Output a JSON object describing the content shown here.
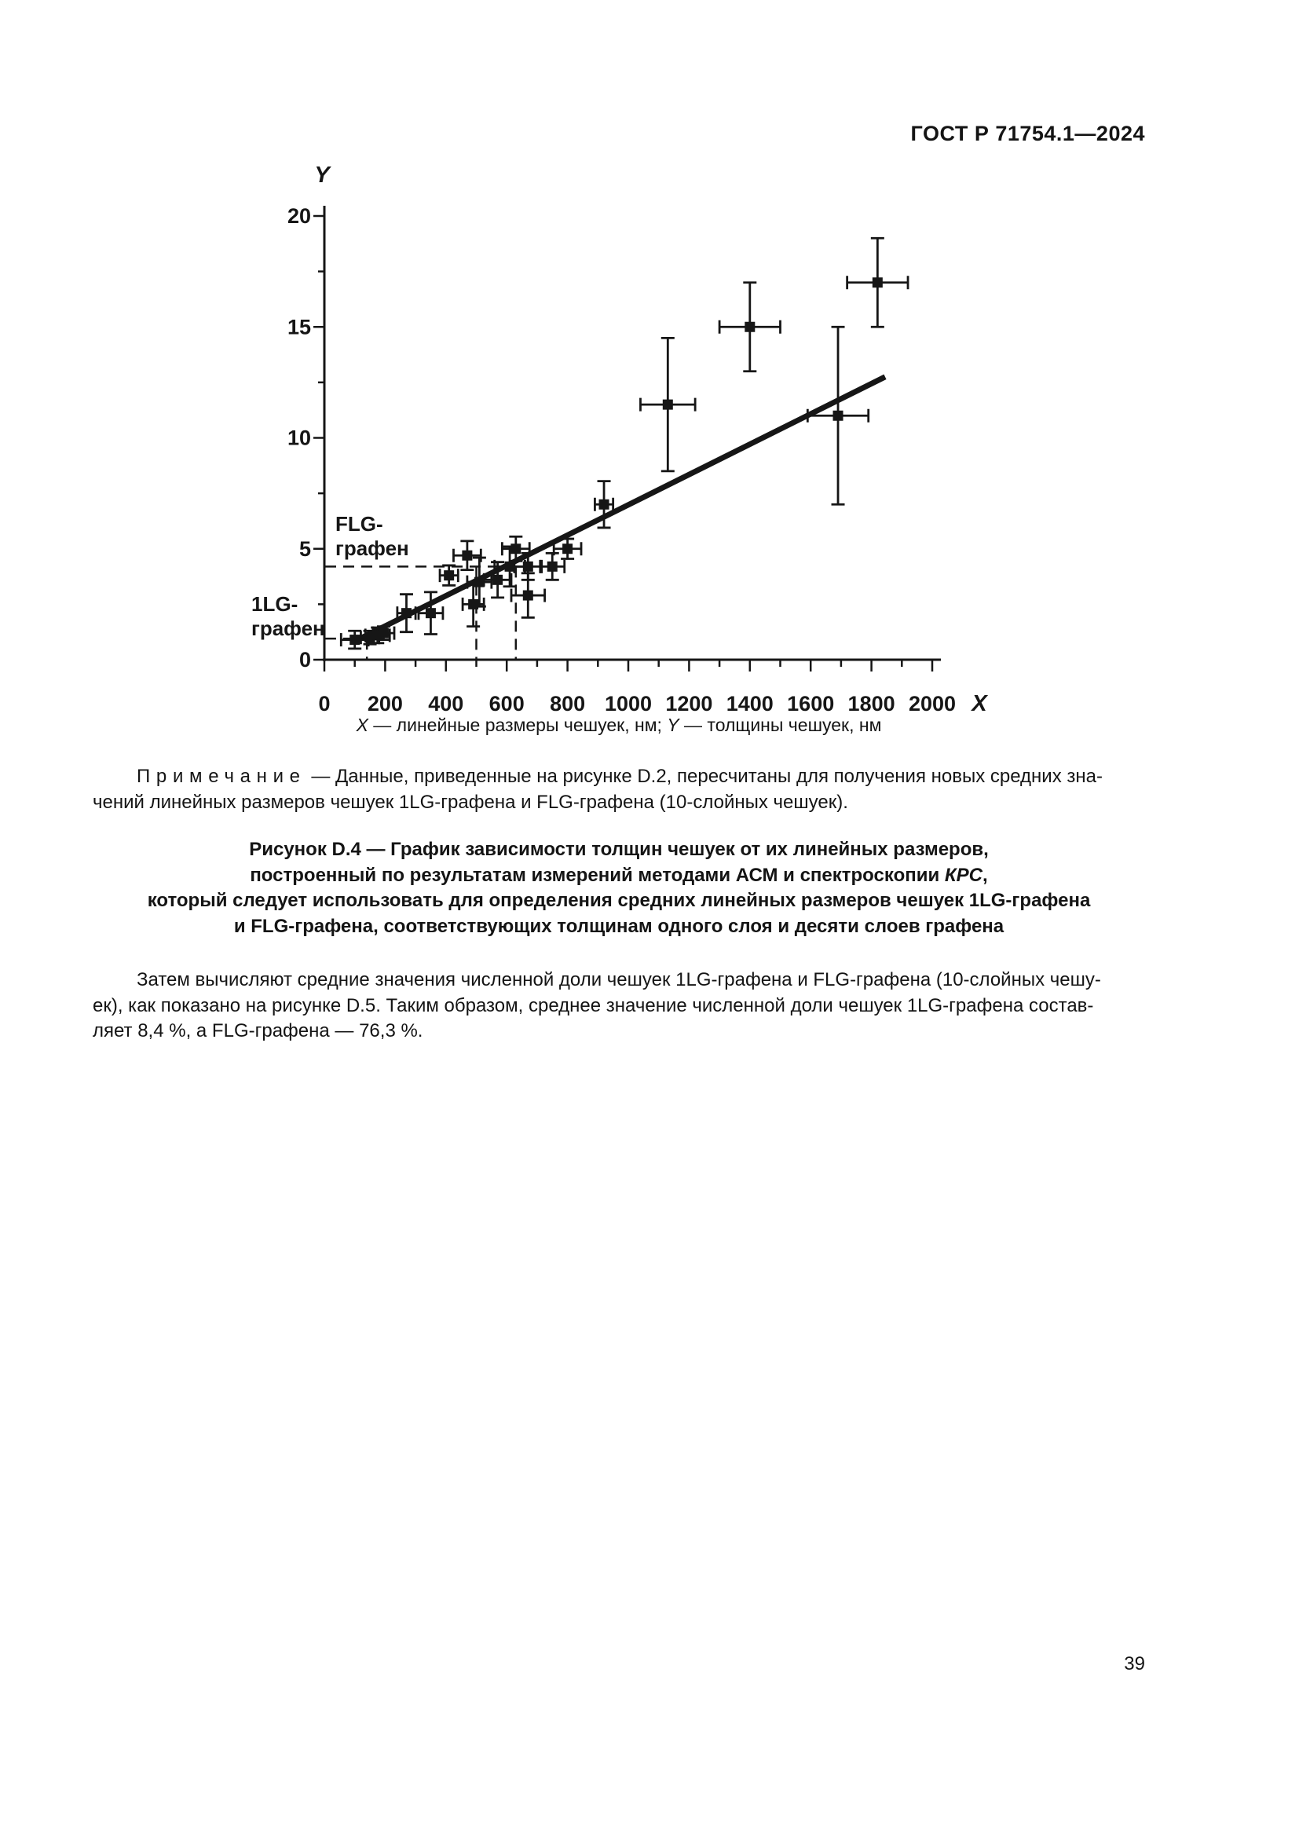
{
  "header": {
    "title": "ГОСТ Р 71754.1—2024"
  },
  "figure_note": {
    "label": "Примечание",
    "line1_rest": " — Данные, приведенные на рисунке D.2, пересчитаны для получения новых средних зна-",
    "line2": "чений линейных размеров чешуек 1LG-графена и FLG-графена (10-слойных чешуек)."
  },
  "figure_caption": {
    "line1": "Рисунок D.4 — График зависимости толщин чешуек от их линейных размеров,",
    "line2_a": "построенный по результатам измерений методами АСМ и спектроскопии ",
    "line2_italic": "КРС",
    "line2_b": ",",
    "line3": "который следует использовать для определения средних линейных размеров чешуек 1LG-графена",
    "line4": "и FLG-графена, соответствующих толщинам одного слоя и десяти слоев графена"
  },
  "body_paragraph": {
    "line1": "Затем вычисляют средние значения численной доли чешуек 1LG-графена и FLG-графена (10-слойных чешу-",
    "line2": "ек), как показано на рисунке D.5. Таким образом, среднее значение численной доли чешуек 1LG-графена состав-",
    "line3": "ляет 8,4 %, а FLG-графена — 76,3 %."
  },
  "axis_note": {
    "x_symbol": "X",
    "x_text": " — линейные размеры чешуек, нм; ",
    "y_symbol": "Y",
    "y_text": " — толщины чешуек, нм"
  },
  "footer": {
    "page_number": "39"
  },
  "chart_data": {
    "type": "scatter",
    "title": "",
    "xlabel": "X — линейные размеры чешуек, нм",
    "ylabel": "Y — толщины чешуек, нм",
    "x_axis_symbol": "X",
    "y_axis_symbol": "Y",
    "xlim": [
      0,
      2000
    ],
    "ylim": [
      0,
      20
    ],
    "x_ticks_major": [
      0,
      200,
      400,
      600,
      800,
      1000,
      1200,
      1400,
      1600,
      1800,
      2000
    ],
    "x_minor_step": 100,
    "y_ticks_major": [
      0,
      5,
      10,
      15,
      20
    ],
    "y_ticks_minor": [
      2.5,
      7.5,
      12.5,
      17.5
    ],
    "grid": false,
    "marker": "filled-square",
    "points": [
      {
        "x": 100,
        "y": 0.9,
        "xerr": 45,
        "yerr": 0.4
      },
      {
        "x": 150,
        "y": 1.0,
        "xerr": 30,
        "yerr": 0.3
      },
      {
        "x": 175,
        "y": 1.1,
        "xerr": 40,
        "yerr": 0.35
      },
      {
        "x": 195,
        "y": 1.2,
        "xerr": 35,
        "yerr": 0.3
      },
      {
        "x": 270,
        "y": 2.1,
        "xerr": 30,
        "yerr": 0.85
      },
      {
        "x": 350,
        "y": 2.1,
        "xerr": 40,
        "yerr": 0.95
      },
      {
        "x": 410,
        "y": 3.8,
        "xerr": 30,
        "yerr": 0.45
      },
      {
        "x": 470,
        "y": 4.7,
        "xerr": 45,
        "yerr": 0.65
      },
      {
        "x": 490,
        "y": 2.5,
        "xerr": 35,
        "yerr": 1.0
      },
      {
        "x": 510,
        "y": 3.5,
        "xerr": 40,
        "yerr": 1.1
      },
      {
        "x": 570,
        "y": 3.6,
        "xerr": 45,
        "yerr": 0.8
      },
      {
        "x": 610,
        "y": 4.2,
        "xerr": 50,
        "yerr": 0.9
      },
      {
        "x": 630,
        "y": 5.0,
        "xerr": 45,
        "yerr": 0.55
      },
      {
        "x": 670,
        "y": 4.2,
        "xerr": 45,
        "yerr": 0.6
      },
      {
        "x": 670,
        "y": 2.9,
        "xerr": 55,
        "yerr": 1.0
      },
      {
        "x": 750,
        "y": 4.2,
        "xerr": 40,
        "yerr": 0.6
      },
      {
        "x": 800,
        "y": 5.0,
        "xerr": 45,
        "yerr": 0.45
      },
      {
        "x": 920,
        "y": 7.0,
        "xerr": 30,
        "yerr": 1.05
      },
      {
        "x": 1130,
        "y": 11.5,
        "xerr": 90,
        "yerr": 3.0
      },
      {
        "x": 1400,
        "y": 15.0,
        "xerr": 100,
        "yerr": 2.0
      },
      {
        "x": 1690,
        "y": 11.0,
        "xerr": 100,
        "yerr": 4.0
      },
      {
        "x": 1820,
        "y": 17.0,
        "xerr": 100,
        "yerr": 2.0
      }
    ],
    "fit_line": {
      "x1": 95,
      "y1": 0.8,
      "x2": 1845,
      "y2": 12.75
    },
    "guides": [
      {
        "name": "flg",
        "label_line1": "FLG-",
        "label_line2": "графен",
        "y": 4.2,
        "h_extent_x": 630,
        "verticals": [
          500,
          630
        ]
      },
      {
        "name": "lg",
        "label_line1": "1LG-",
        "label_line2": "графен",
        "y": 0.95,
        "h_extent_x": 135,
        "verticals": [
          140
        ]
      }
    ],
    "legend": null
  }
}
